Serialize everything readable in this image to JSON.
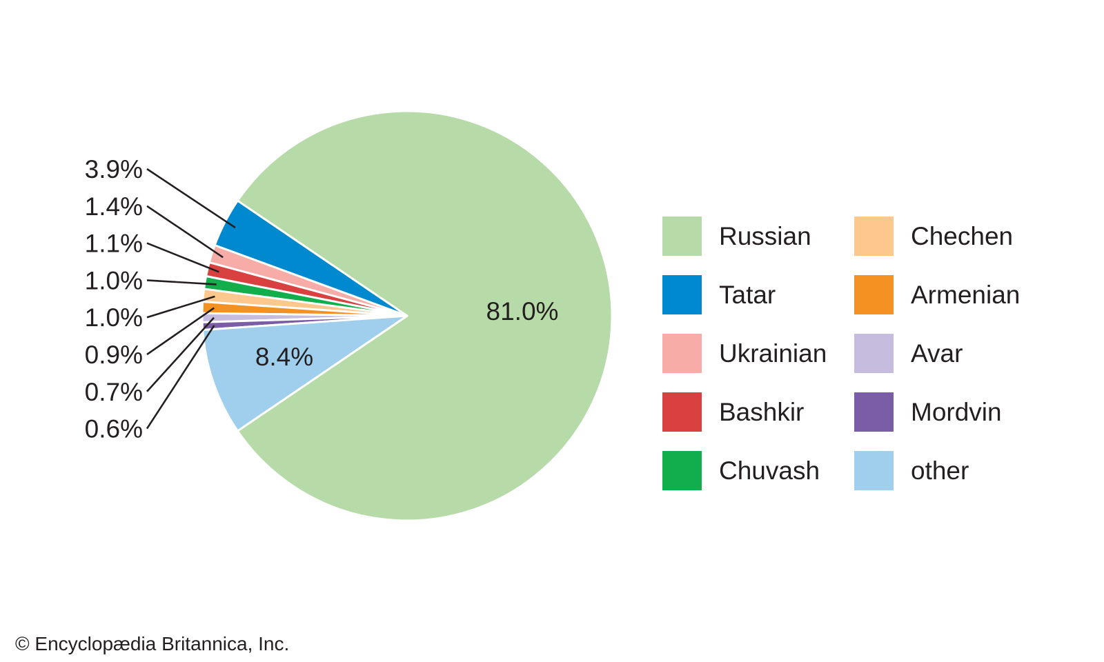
{
  "chart_data": {
    "type": "pie",
    "title": "",
    "slices": [
      {
        "label": "Russian",
        "value": 81.0,
        "display": "81.0%",
        "color": "#b7dba8"
      },
      {
        "label": "Tatar",
        "value": 3.9,
        "display": "3.9%",
        "color": "#0089cf"
      },
      {
        "label": "Ukrainian",
        "value": 1.4,
        "display": "1.4%",
        "color": "#f7aca7"
      },
      {
        "label": "Bashkir",
        "value": 1.1,
        "display": "1.1%",
        "color": "#d94140"
      },
      {
        "label": "Chuvash",
        "value": 1.0,
        "display": "1.0%",
        "color": "#12ae4b"
      },
      {
        "label": "Chechen",
        "value": 1.0,
        "display": "1.0%",
        "color": "#fcc88d"
      },
      {
        "label": "Armenian",
        "value": 0.9,
        "display": "0.9%",
        "color": "#f39222"
      },
      {
        "label": "Avar",
        "value": 0.7,
        "display": "0.7%",
        "color": "#c6bcdd"
      },
      {
        "label": "Mordvin",
        "value": 0.6,
        "display": "0.6%",
        "color": "#7b5da7"
      },
      {
        "label": "other",
        "value": 8.4,
        "display": "8.4%",
        "color": "#a0cfee"
      }
    ],
    "legend_placement": "right",
    "legend_columns": [
      [
        "Russian",
        "Tatar",
        "Ukrainian",
        "Bashkir",
        "Chuvash"
      ],
      [
        "Chechen",
        "Armenian",
        "Avar",
        "Mordvin",
        "other"
      ]
    ]
  },
  "footer": {
    "copyright": "© Encyclopædia Britannica, Inc."
  }
}
